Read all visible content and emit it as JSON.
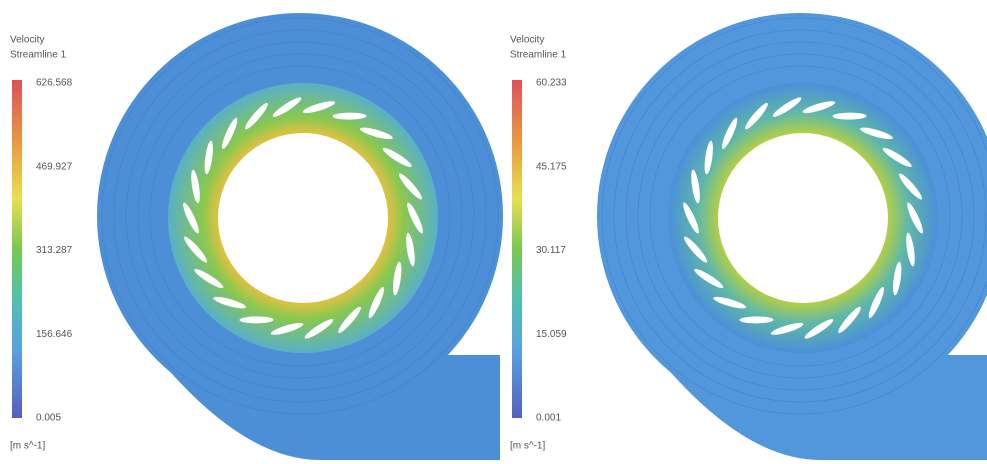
{
  "panels": [
    {
      "title": "Velocity",
      "subtitle": "Streamline 1",
      "legend_labels": [
        "626.568",
        "469.927",
        "313.287",
        "156.646",
        "0.005"
      ],
      "unit": "[m s^-1]"
    },
    {
      "title": "Velocity",
      "subtitle": "Streamline 1",
      "legend_labels": [
        "60.233",
        "45.175",
        "30.117",
        "15.059",
        "0.001"
      ],
      "unit": "[m s^-1]"
    }
  ]
}
